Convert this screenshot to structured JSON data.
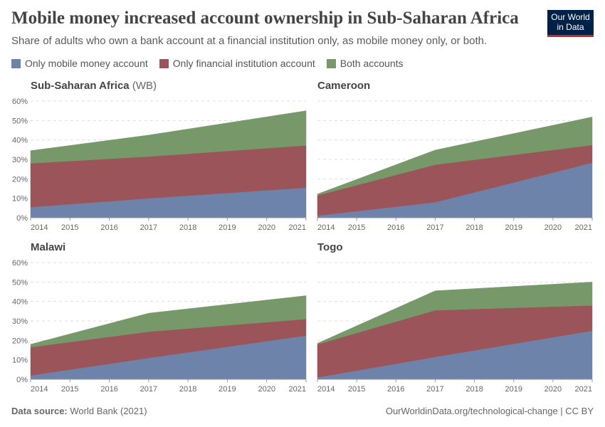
{
  "header": {
    "title": "Mobile money increased account ownership in Sub-Saharan Africa",
    "subtitle": "Share of adults who own a bank account at a financial institution only, as mobile money only, or both.",
    "logo": "Our World in Data"
  },
  "footer": {
    "source_label": "Data source:",
    "source": "World Bank (2021)",
    "credit": "OurWorldinData.org/technological-change | CC BY"
  },
  "chart_data": {
    "type": "area",
    "stacked": true,
    "legend": [
      {
        "name": "Only mobile money account",
        "color": "#6d83aa"
      },
      {
        "name": "Only financial institution account",
        "color": "#9c545b"
      },
      {
        "name": "Both accounts",
        "color": "#77996a"
      }
    ],
    "x": [
      2014,
      2017,
      2021
    ],
    "xticks": [
      "2014",
      "2015",
      "2016",
      "2017",
      "2018",
      "2019",
      "2020",
      "2021"
    ],
    "yticks": [
      "0%",
      "10%",
      "20%",
      "30%",
      "40%",
      "50%",
      "60%"
    ],
    "ylim": [
      0,
      60
    ],
    "grid": true,
    "legend_position": "top",
    "panels": [
      {
        "title": "Sub-Saharan Africa",
        "title_suffix": "(WB)",
        "series": [
          [
            5.5,
            10,
            15.5
          ],
          [
            22.5,
            21.5,
            21.7
          ],
          [
            6.5,
            11,
            17.8
          ]
        ]
      },
      {
        "title": "Cameroon",
        "title_suffix": "",
        "series": [
          [
            1.1,
            8,
            28.3
          ],
          [
            10.4,
            19.3,
            9.1
          ],
          [
            0.7,
            7.5,
            14.4
          ]
        ]
      },
      {
        "title": "Malawi",
        "title_suffix": "",
        "series": [
          [
            2,
            11,
            22.5
          ],
          [
            14.5,
            13.5,
            8.5
          ],
          [
            1.5,
            9.5,
            12
          ]
        ]
      },
      {
        "title": "Togo",
        "title_suffix": "",
        "series": [
          [
            1,
            11.5,
            25
          ],
          [
            17,
            24,
            13
          ],
          [
            0.5,
            10,
            12
          ]
        ]
      }
    ]
  }
}
